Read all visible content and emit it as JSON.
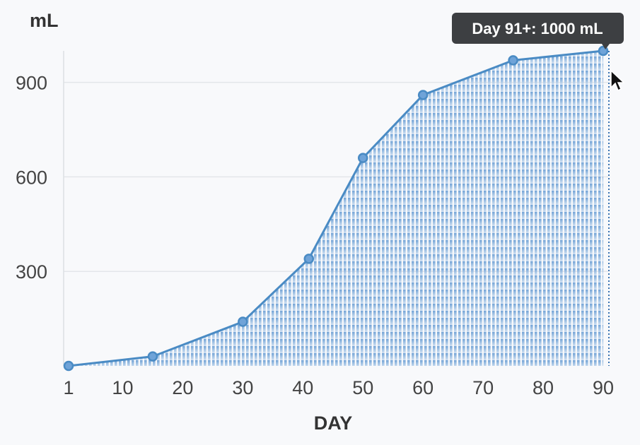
{
  "chart_data": {
    "type": "area",
    "title": "",
    "ylabel": "mL",
    "xlabel": "DAY",
    "x_ticks": [
      1,
      10,
      20,
      30,
      40,
      50,
      60,
      70,
      80,
      90
    ],
    "y_ticks": [
      300,
      600,
      900
    ],
    "xlim": [
      1,
      90
    ],
    "ylim": [
      0,
      1000
    ],
    "grid": true,
    "series": [
      {
        "x": [
          1,
          15,
          30,
          41,
          50,
          60,
          75,
          90
        ],
        "y": [
          0,
          30,
          140,
          340,
          660,
          860,
          970,
          1000
        ]
      }
    ],
    "colors": {
      "line": "#4a8bc4",
      "fill": "#7aabdb",
      "point": "#6fa3d8"
    },
    "tooltip": {
      "text": "Day 91+: 1000 mL",
      "x": 90
    }
  }
}
